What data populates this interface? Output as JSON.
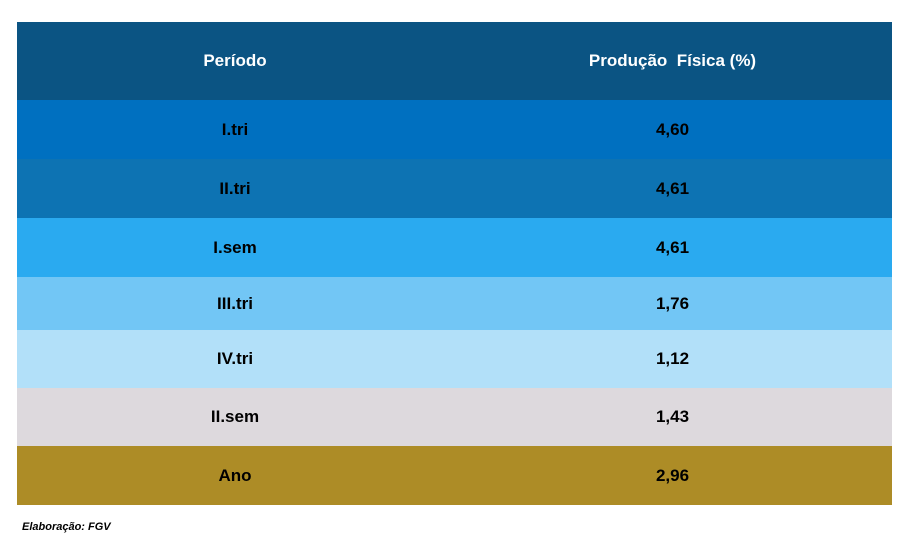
{
  "chart_data": {
    "type": "table",
    "columns": [
      "Período",
      "Produção  Física (%)"
    ],
    "rows": [
      {
        "periodo": "I.tri",
        "valor": "4,60",
        "color": "#0070c0",
        "height": 59
      },
      {
        "periodo": "II.tri",
        "valor": "4,61",
        "color": "#0d73b3",
        "height": 59
      },
      {
        "periodo": "I.sem",
        "valor": "4,61",
        "color": "#2aaaf0",
        "height": 59
      },
      {
        "periodo": "III.tri",
        "valor": "1,76",
        "color": "#72c6f5",
        "height": 53
      },
      {
        "periodo": "IV.tri",
        "valor": "1,12",
        "color": "#b2e0f9",
        "height": 58
      },
      {
        "periodo": "II.sem",
        "valor": "1,43",
        "color": "#ddd9dd",
        "height": 58
      },
      {
        "periodo": "Ano",
        "valor": "2,96",
        "color": "#ad8c26",
        "height": 59
      }
    ],
    "header_color": "#0b5483"
  },
  "footer": "Elaboração: FGV"
}
